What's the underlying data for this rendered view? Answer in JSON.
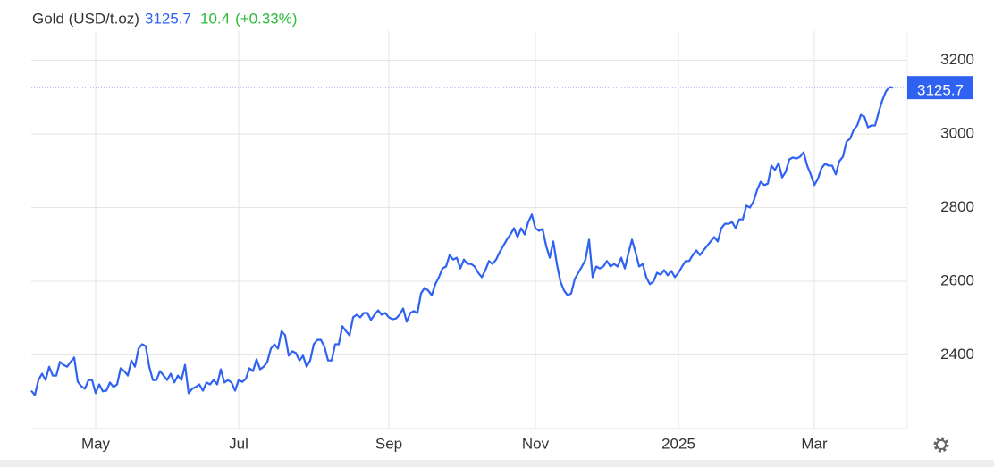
{
  "chart_data": {
    "type": "line",
    "title": "Gold (USD/t.oz)",
    "price": 3125.7,
    "change": 10.4,
    "change_pct": "(+0.33%)",
    "color": "#2f62f0",
    "grid": true,
    "xlim": [
      0,
      245
    ],
    "xticks": [
      {
        "value": 18,
        "label": "May"
      },
      {
        "value": 58,
        "label": "Jul"
      },
      {
        "value": 100,
        "label": "Sep"
      },
      {
        "value": 141,
        "label": "Nov"
      },
      {
        "value": 181,
        "label": "2025"
      },
      {
        "value": 219,
        "label": "Mar"
      }
    ],
    "ylim": [
      2200,
      3280
    ],
    "yticks": [
      2400,
      2600,
      2800,
      3000,
      3200
    ],
    "values": [
      2303,
      2291,
      2332,
      2349,
      2332,
      2368,
      2344,
      2344,
      2381,
      2373,
      2368,
      2381,
      2393,
      2327,
      2315,
      2308,
      2332,
      2332,
      2296,
      2320,
      2301,
      2303,
      2325,
      2313,
      2320,
      2364,
      2356,
      2344,
      2385,
      2368,
      2417,
      2429,
      2424,
      2368,
      2332,
      2332,
      2356,
      2344,
      2332,
      2349,
      2325,
      2344,
      2332,
      2373,
      2296,
      2308,
      2313,
      2320,
      2303,
      2325,
      2320,
      2332,
      2320,
      2361,
      2325,
      2332,
      2325,
      2303,
      2332,
      2327,
      2335,
      2364,
      2356,
      2388,
      2361,
      2368,
      2381,
      2417,
      2429,
      2417,
      2465,
      2453,
      2398,
      2410,
      2405,
      2385,
      2398,
      2368,
      2385,
      2429,
      2441,
      2441,
      2422,
      2385,
      2385,
      2429,
      2429,
      2478,
      2465,
      2453,
      2502,
      2509,
      2502,
      2514,
      2514,
      2495,
      2509,
      2521,
      2509,
      2514,
      2502,
      2497,
      2499,
      2509,
      2526,
      2490,
      2514,
      2519,
      2514,
      2567,
      2582,
      2575,
      2562,
      2592,
      2611,
      2635,
      2640,
      2671,
      2659,
      2664,
      2635,
      2659,
      2647,
      2647,
      2640,
      2623,
      2611,
      2630,
      2655,
      2647,
      2659,
      2679,
      2696,
      2713,
      2727,
      2744,
      2720,
      2744,
      2727,
      2761,
      2781,
      2744,
      2737,
      2742,
      2696,
      2664,
      2708,
      2647,
      2599,
      2575,
      2562,
      2567,
      2606,
      2623,
      2640,
      2659,
      2713,
      2611,
      2640,
      2635,
      2640,
      2655,
      2640,
      2647,
      2640,
      2664,
      2635,
      2676,
      2713,
      2679,
      2640,
      2647,
      2611,
      2592,
      2599,
      2623,
      2618,
      2630,
      2616,
      2628,
      2611,
      2623,
      2640,
      2655,
      2655,
      2671,
      2684,
      2671,
      2684,
      2696,
      2708,
      2720,
      2708,
      2744,
      2756,
      2756,
      2761,
      2744,
      2768,
      2768,
      2805,
      2800,
      2817,
      2848,
      2870,
      2861,
      2865,
      2914,
      2902,
      2921,
      2882,
      2897,
      2931,
      2936,
      2933,
      2938,
      2950,
      2914,
      2890,
      2861,
      2878,
      2907,
      2919,
      2914,
      2914,
      2890,
      2926,
      2938,
      2979,
      2987,
      3011,
      3023,
      3052,
      3047,
      3018,
      3023,
      3023,
      3059,
      3091,
      3115,
      3127,
      3125.7
    ]
  }
}
